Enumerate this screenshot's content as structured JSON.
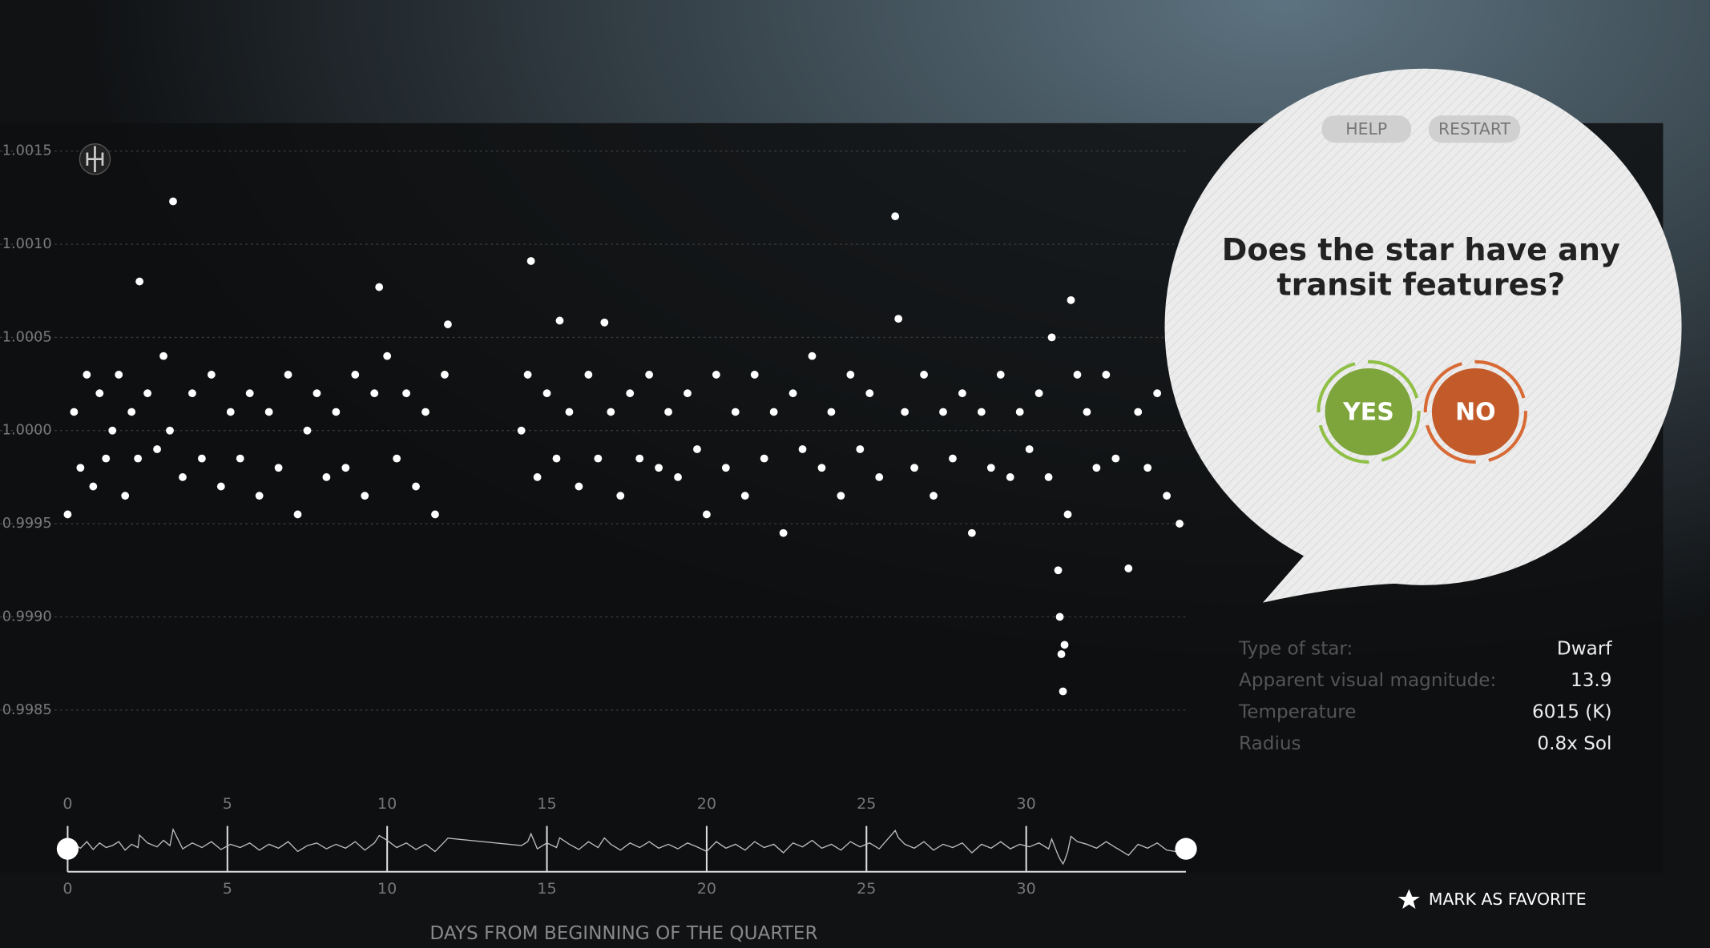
{
  "chart_data": {
    "type": "scatter",
    "color": "#ffffff",
    "xlabel": "DAYS FROM BEGINNING OF THE QUARTER",
    "xlim": [
      0,
      35
    ],
    "xticks": [
      0,
      5,
      10,
      15,
      20,
      25,
      30
    ],
    "ylim": [
      0.9981,
      1.00165
    ],
    "yticks": [
      {
        "value": 1.0015,
        "label": "1.0015"
      },
      {
        "value": 1.001,
        "label": "1.0010"
      },
      {
        "value": 1.0005,
        "label": "1.0005"
      },
      {
        "value": 1.0,
        "label": "1.0000"
      },
      {
        "value": 0.9995,
        "label": "0.9995"
      },
      {
        "value": 0.999,
        "label": "0.9990"
      },
      {
        "value": 0.9985,
        "label": "0.9985"
      }
    ],
    "grid": true,
    "x": [
      0.0,
      0.2,
      0.4,
      0.6,
      0.8,
      1.0,
      1.2,
      1.4,
      1.6,
      1.8,
      2.0,
      2.2,
      2.25,
      2.5,
      2.8,
      3.0,
      3.2,
      3.3,
      3.6,
      3.9,
      4.2,
      4.5,
      4.8,
      5.1,
      5.4,
      5.7,
      6.0,
      6.3,
      6.6,
      6.9,
      7.2,
      7.5,
      7.8,
      8.1,
      8.4,
      8.7,
      9.0,
      9.3,
      9.6,
      9.75,
      10.0,
      10.3,
      10.6,
      10.9,
      11.2,
      11.5,
      11.8,
      11.9,
      14.2,
      14.4,
      14.5,
      14.7,
      15.0,
      15.3,
      15.4,
      15.7,
      16.0,
      16.3,
      16.6,
      16.8,
      17.0,
      17.3,
      17.6,
      17.9,
      18.2,
      18.5,
      18.8,
      19.1,
      19.4,
      19.7,
      20.0,
      20.3,
      20.6,
      20.9,
      21.2,
      21.5,
      21.8,
      22.1,
      22.4,
      22.7,
      23.0,
      23.3,
      23.6,
      23.9,
      24.2,
      24.5,
      24.8,
      25.1,
      25.4,
      25.9,
      26.0,
      26.2,
      26.5,
      26.8,
      27.1,
      27.4,
      27.7,
      28.0,
      28.3,
      28.6,
      28.9,
      29.2,
      29.5,
      29.8,
      30.1,
      30.4,
      30.7,
      30.8,
      31.0,
      31.05,
      31.1,
      31.15,
      31.2,
      31.3,
      31.4,
      31.6,
      31.9,
      32.2,
      32.5,
      32.8,
      33.2,
      33.5,
      33.8,
      34.1,
      34.4,
      34.8
    ],
    "values": [
      0.99955,
      1.0001,
      0.9998,
      1.0003,
      0.9997,
      1.0002,
      0.99985,
      1.0,
      1.0003,
      0.99965,
      1.0001,
      0.99985,
      1.0008,
      1.0002,
      0.9999,
      1.0004,
      1.0,
      1.00123,
      0.99975,
      1.0002,
      0.99985,
      1.0003,
      0.9997,
      1.0001,
      0.99985,
      1.0002,
      0.99965,
      1.0001,
      0.9998,
      1.0003,
      0.99955,
      1.0,
      1.0002,
      0.99975,
      1.0001,
      0.9998,
      1.0003,
      0.99965,
      1.0002,
      1.00077,
      1.0004,
      0.99985,
      1.0002,
      0.9997,
      1.0001,
      0.99955,
      1.0003,
      1.00057,
      1.0,
      1.0003,
      1.00091,
      0.99975,
      1.0002,
      0.99985,
      1.00059,
      1.0001,
      0.9997,
      1.0003,
      0.99985,
      1.00058,
      1.0001,
      0.99965,
      1.0002,
      0.99985,
      1.0003,
      0.9998,
      1.0001,
      0.99975,
      1.0002,
      0.9999,
      0.99955,
      1.0003,
      0.9998,
      1.0001,
      0.99965,
      1.0003,
      0.99985,
      1.0001,
      0.99945,
      1.0002,
      0.9999,
      1.0004,
      0.9998,
      1.0001,
      0.99965,
      1.0003,
      0.9999,
      1.0002,
      0.99975,
      1.00115,
      1.0006,
      1.0001,
      0.9998,
      1.0003,
      0.99965,
      1.0001,
      0.99985,
      1.0002,
      0.99945,
      1.0001,
      0.9998,
      1.0003,
      0.99975,
      1.0001,
      0.9999,
      1.0002,
      0.99975,
      1.0005,
      0.99925,
      0.999,
      0.9988,
      0.9986,
      0.99885,
      0.99955,
      1.0007,
      1.0003,
      1.0001,
      0.9998,
      1.0003,
      0.99985,
      0.99926,
      1.0001,
      0.9998,
      1.0002,
      0.99965,
      0.9995
    ]
  },
  "buttons": {
    "help": "HELP",
    "restart": "RESTART",
    "yes": "YES",
    "no": "NO"
  },
  "question": [
    "Does the star have any",
    "transit features?"
  ],
  "star_info": [
    {
      "label": "Type of star:",
      "value": "Dwarf"
    },
    {
      "label": "Apparent visual magnitude:",
      "value": "13.9"
    },
    {
      "label": "Temperature",
      "value": "6015 (K)"
    },
    {
      "label": "Radius",
      "value": "0.8x Sol"
    }
  ],
  "favorite": "MARK AS FAVORITE"
}
